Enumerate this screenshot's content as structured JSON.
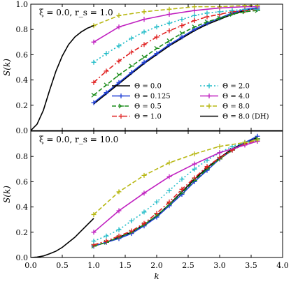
{
  "chart_data": [
    {
      "type": "line",
      "annotation": "ξ = 0.0,  r_s = 1.0",
      "xlabel": "",
      "ylabel": "S(k)",
      "xlim": [
        0.0,
        4.0
      ],
      "ylim": [
        0.0,
        1.0
      ],
      "xticks": [],
      "yticks": [
        "0.0",
        "0.2",
        "0.4",
        "0.6",
        "0.8",
        "1.0"
      ],
      "grid": false,
      "legend_position": "lower-right",
      "series": [
        {
          "name": "Θ = 0.0",
          "color": "#000000",
          "marker": "none",
          "dash": "solid",
          "x": [
            1.0,
            1.2,
            1.4,
            1.6,
            1.8,
            2.0,
            2.2,
            2.4,
            2.6,
            2.8,
            3.0,
            3.2,
            3.4,
            3.6
          ],
          "y": [
            0.21,
            0.29,
            0.37,
            0.45,
            0.53,
            0.6,
            0.67,
            0.73,
            0.79,
            0.84,
            0.88,
            0.92,
            0.95,
            0.97
          ]
        },
        {
          "name": "Θ = 0.125",
          "color": "#1f3fd6",
          "marker": "plus",
          "dash": "solid",
          "x": [
            1.0,
            1.2,
            1.4,
            1.6,
            1.8,
            2.0,
            2.2,
            2.4,
            2.6,
            2.8,
            3.0,
            3.2,
            3.4,
            3.6
          ],
          "y": [
            0.22,
            0.3,
            0.38,
            0.46,
            0.54,
            0.61,
            0.68,
            0.74,
            0.8,
            0.85,
            0.89,
            0.93,
            0.96,
            0.97
          ]
        },
        {
          "name": "Θ = 0.5",
          "color": "#1a8c1a",
          "marker": "tri",
          "dash": "dashed",
          "x": [
            1.0,
            1.2,
            1.4,
            1.6,
            1.8,
            2.0,
            2.2,
            2.4,
            2.6,
            2.8,
            3.0,
            3.2,
            3.4,
            3.6
          ],
          "y": [
            0.28,
            0.36,
            0.44,
            0.51,
            0.58,
            0.65,
            0.71,
            0.77,
            0.82,
            0.86,
            0.89,
            0.92,
            0.94,
            0.95
          ]
        },
        {
          "name": "Θ = 1.0",
          "color": "#e02020",
          "marker": "plus",
          "dash": "dashdot",
          "x": [
            1.0,
            1.2,
            1.4,
            1.6,
            1.8,
            2.0,
            2.2,
            2.4,
            2.6,
            2.8,
            3.0,
            3.2,
            3.4,
            3.6
          ],
          "y": [
            0.38,
            0.47,
            0.55,
            0.62,
            0.68,
            0.74,
            0.79,
            0.83,
            0.87,
            0.9,
            0.92,
            0.94,
            0.95,
            0.96
          ]
        },
        {
          "name": "Θ = 2.0",
          "color": "#22bcc8",
          "marker": "plus",
          "dash": "dotted",
          "x": [
            1.0,
            1.2,
            1.4,
            1.6,
            1.8,
            2.0,
            2.2,
            2.4,
            2.6,
            2.8,
            3.0,
            3.2,
            3.4,
            3.6
          ],
          "y": [
            0.54,
            0.61,
            0.67,
            0.73,
            0.78,
            0.82,
            0.85,
            0.88,
            0.91,
            0.93,
            0.94,
            0.95,
            0.96,
            0.96
          ]
        },
        {
          "name": "Θ = 4.0",
          "color": "#c020c0",
          "marker": "plus",
          "dash": "solid",
          "x": [
            1.0,
            1.4,
            1.8,
            2.2,
            2.6,
            3.0,
            3.4,
            3.6
          ],
          "y": [
            0.7,
            0.82,
            0.88,
            0.92,
            0.95,
            0.97,
            0.98,
            0.98
          ]
        },
        {
          "name": "Θ = 8.0",
          "color": "#b8b814",
          "marker": "plus",
          "dash": "dashed",
          "x": [
            1.0,
            1.4,
            1.8,
            2.2,
            2.6,
            3.0,
            3.4,
            3.6
          ],
          "y": [
            0.83,
            0.91,
            0.94,
            0.96,
            0.98,
            0.98,
            0.99,
            0.99
          ]
        },
        {
          "name": "Θ = 8.0 (DH)",
          "color": "#000000",
          "marker": "none",
          "dash": "solid",
          "x": [
            0.0,
            0.1,
            0.2,
            0.3,
            0.4,
            0.5,
            0.6,
            0.7,
            0.8,
            0.9,
            1.0
          ],
          "y": [
            0.0,
            0.05,
            0.16,
            0.32,
            0.47,
            0.59,
            0.68,
            0.74,
            0.78,
            0.81,
            0.83
          ]
        }
      ]
    },
    {
      "type": "line",
      "annotation": "ξ = 0.0,  r_s = 10.0",
      "xlabel": "k",
      "ylabel": "S(k)",
      "xlim": [
        0.0,
        4.0
      ],
      "ylim": [
        0.0,
        1.0
      ],
      "xticks": [
        "0.0",
        "0.5",
        "1.0",
        "1.5",
        "2.0",
        "2.5",
        "3.0",
        "3.5",
        "4.0"
      ],
      "yticks": [
        "0.0",
        "0.2",
        "0.4",
        "0.6",
        "0.8"
      ],
      "grid": false,
      "series": [
        {
          "name": "Θ = 0.0",
          "color": "#000000",
          "marker": "none",
          "dash": "solid",
          "x": [
            1.0,
            1.2,
            1.4,
            1.6,
            1.8,
            2.0,
            2.2,
            2.4,
            2.6,
            2.8,
            3.0,
            3.2,
            3.4,
            3.6
          ],
          "y": [
            0.09,
            0.12,
            0.16,
            0.2,
            0.26,
            0.33,
            0.42,
            0.52,
            0.62,
            0.71,
            0.79,
            0.86,
            0.91,
            0.95
          ]
        },
        {
          "name": "Θ = 0.125",
          "color": "#1f3fd6",
          "marker": "plus",
          "dash": "solid",
          "x": [
            1.0,
            1.2,
            1.4,
            1.6,
            1.8,
            2.0,
            2.2,
            2.4,
            2.6,
            2.8,
            3.0,
            3.2,
            3.4,
            3.6
          ],
          "y": [
            0.09,
            0.12,
            0.15,
            0.19,
            0.25,
            0.32,
            0.41,
            0.5,
            0.6,
            0.69,
            0.78,
            0.85,
            0.91,
            0.96
          ]
        },
        {
          "name": "Θ = 0.5",
          "color": "#1a8c1a",
          "marker": "tri",
          "dash": "dashed",
          "x": [
            1.0,
            1.2,
            1.4,
            1.6,
            1.8,
            2.0,
            2.2,
            2.4,
            2.6,
            2.8,
            3.0,
            3.2,
            3.4,
            3.6
          ],
          "y": [
            0.09,
            0.12,
            0.16,
            0.2,
            0.26,
            0.33,
            0.42,
            0.51,
            0.61,
            0.7,
            0.78,
            0.85,
            0.9,
            0.94
          ]
        },
        {
          "name": "Θ = 1.0",
          "color": "#e02020",
          "marker": "plus",
          "dash": "dashdot",
          "x": [
            1.0,
            1.2,
            1.4,
            1.6,
            1.8,
            2.0,
            2.2,
            2.4,
            2.6,
            2.8,
            3.0,
            3.2,
            3.4,
            3.6
          ],
          "y": [
            0.1,
            0.13,
            0.17,
            0.21,
            0.27,
            0.35,
            0.44,
            0.54,
            0.63,
            0.72,
            0.79,
            0.85,
            0.9,
            0.93
          ]
        },
        {
          "name": "Θ = 2.0",
          "color": "#22bcc8",
          "marker": "plus",
          "dash": "dotted",
          "x": [
            1.0,
            1.2,
            1.4,
            1.6,
            1.8,
            2.0,
            2.2,
            2.4,
            2.6,
            2.8,
            3.0,
            3.2,
            3.4,
            3.6
          ],
          "y": [
            0.13,
            0.17,
            0.22,
            0.29,
            0.36,
            0.44,
            0.53,
            0.62,
            0.7,
            0.77,
            0.83,
            0.88,
            0.91,
            0.93
          ]
        },
        {
          "name": "Θ = 4.0",
          "color": "#c020c0",
          "marker": "plus",
          "dash": "solid",
          "x": [
            1.0,
            1.4,
            1.8,
            2.2,
            2.6,
            3.0,
            3.4,
            3.6
          ],
          "y": [
            0.2,
            0.37,
            0.51,
            0.64,
            0.74,
            0.83,
            0.89,
            0.92
          ]
        },
        {
          "name": "Θ = 8.0",
          "color": "#b8b814",
          "marker": "plus",
          "dash": "dashed",
          "x": [
            1.0,
            1.4,
            1.8,
            2.2,
            2.6,
            3.0,
            3.4,
            3.6
          ],
          "y": [
            0.34,
            0.52,
            0.65,
            0.75,
            0.82,
            0.88,
            0.91,
            0.93
          ]
        },
        {
          "name": "Θ = 8.0 (DH)",
          "color": "#000000",
          "marker": "none",
          "dash": "solid",
          "x": [
            0.0,
            0.1,
            0.2,
            0.3,
            0.4,
            0.5,
            0.6,
            0.7,
            0.8,
            0.9,
            1.0
          ],
          "y": [
            0.0,
            0.003,
            0.012,
            0.03,
            0.05,
            0.08,
            0.12,
            0.16,
            0.21,
            0.26,
            0.31
          ]
        }
      ]
    }
  ]
}
